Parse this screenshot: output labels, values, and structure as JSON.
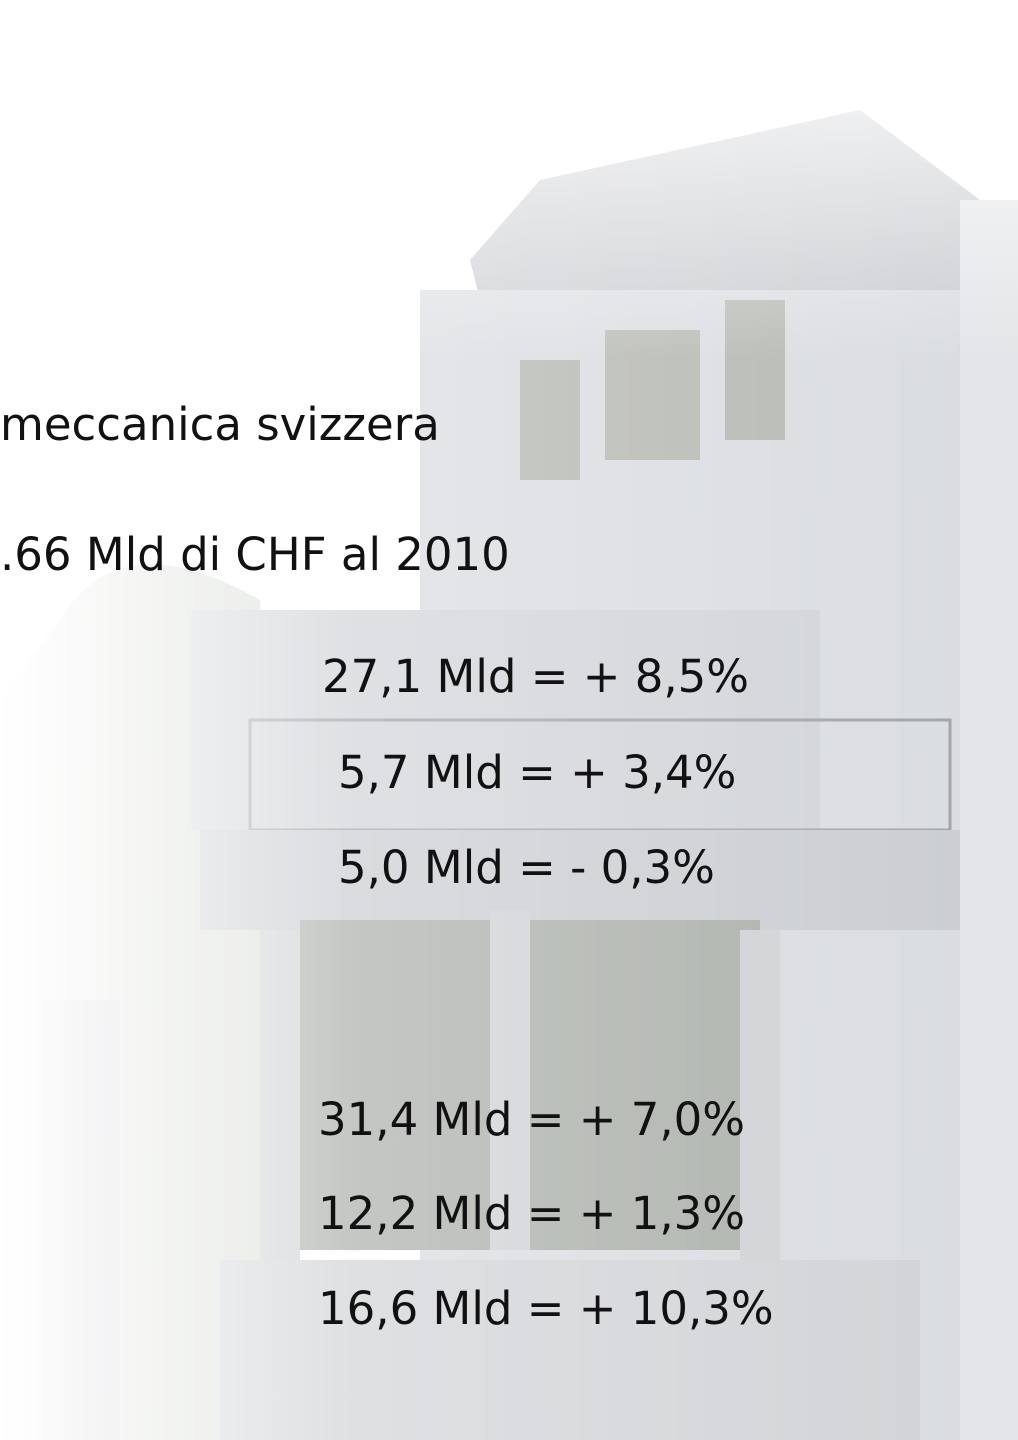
{
  "lines": [
    "meccanica svizzera",
    ".66 Mld di CHF al 2010"
  ],
  "figures": [
    "27,1 Mld = + 8,5%",
    "5,7 Mld = + 3,4%",
    "5,0 Mld = - 0,3%",
    "31,4 Mld = + 7,0%",
    "12,2 Mld = + 1,3%",
    "16,6 Mld = + 10,3%"
  ]
}
